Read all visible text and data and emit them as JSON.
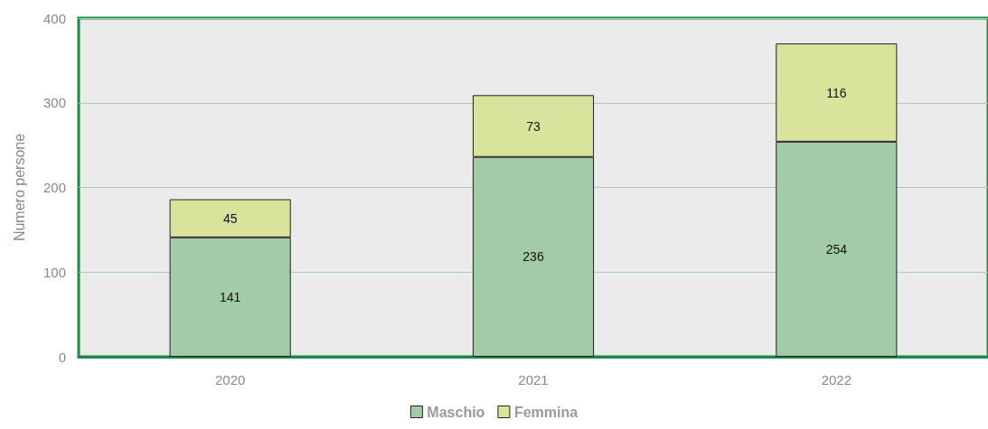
{
  "chart_data": {
    "type": "bar",
    "stacked": true,
    "ylabel": "Numero persone",
    "categories": [
      "2020",
      "2021",
      "2022"
    ],
    "series": [
      {
        "name": "Maschio",
        "color": "#a3cba7",
        "values": [
          141,
          236,
          254
        ]
      },
      {
        "name": "Femmina",
        "color": "#d9e39b",
        "values": [
          45,
          73,
          116
        ]
      }
    ],
    "ylim": [
      0,
      400
    ],
    "yticks": [
      0,
      100,
      200,
      300,
      400
    ],
    "grid": "y",
    "legend": "bottom",
    "data_labels": true
  }
}
